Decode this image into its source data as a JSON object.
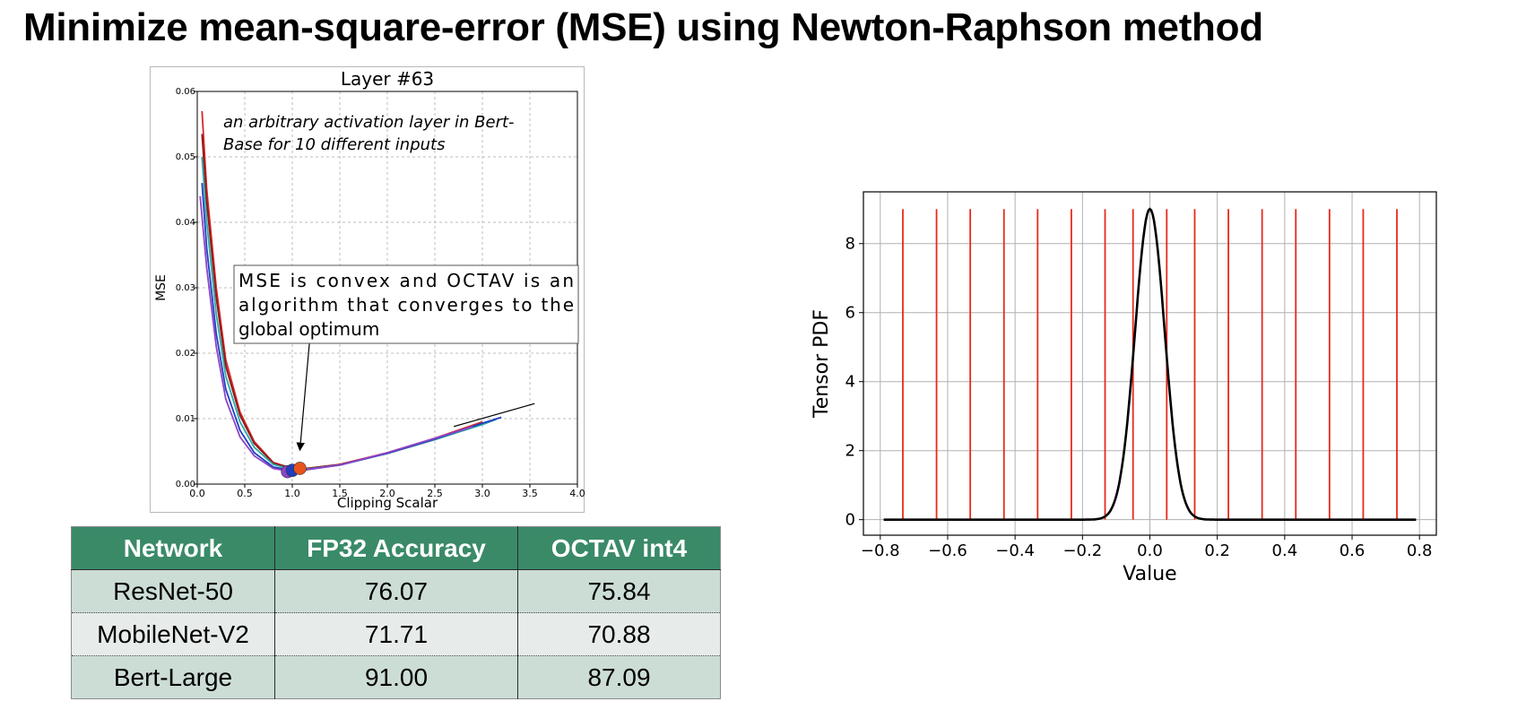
{
  "slide": {
    "title": "Minimize mean-square-error (MSE) using Newton-Raphson method"
  },
  "colors": {
    "table_header": "#3a8a68",
    "table_row_dark": "#ccddd6",
    "table_row_light": "#e7ecea",
    "quant_level": "#e8291c",
    "pdf_curve": "#000000"
  },
  "table": {
    "headers": [
      "Network",
      "FP32 Accuracy",
      "OCTAV int4"
    ],
    "rows": [
      [
        "ResNet-50",
        "76.07",
        "75.84"
      ],
      [
        "MobileNet-V2",
        "71.71",
        "70.88"
      ],
      [
        "Bert-Large",
        "91.00",
        "87.09"
      ]
    ]
  },
  "chart_data": [
    {
      "type": "line",
      "title": "Layer #63",
      "xlabel": "Clipping Scalar",
      "ylabel": "MSE",
      "xlim": [
        0.0,
        4.0
      ],
      "ylim": [
        0.0,
        0.06
      ],
      "xticks": [
        "0.0",
        "0.5",
        "1.0",
        "1.5",
        "2.0",
        "2.5",
        "3.0",
        "3.5",
        "4.0"
      ],
      "yticks": [
        "0.00",
        "0.01",
        "0.02",
        "0.03",
        "0.04",
        "0.05",
        "0.06"
      ],
      "grid": true,
      "annotation_top": "an arbitrary activation layer in Bert-Base for 10 different inputs",
      "annotation_top_lines": [
        "an arbitrary activation layer in Bert-",
        "Base for 10 different inputs"
      ],
      "annotation_box": "MSE is convex and OCTAV is an algorithm that converges to the global optimum",
      "annotation_box_lines": [
        "MSE is convex and OCTAV is an",
        "algorithm that  converges to the",
        "global optimum"
      ],
      "series": [
        {
          "color": "#d62728",
          "x": [
            0.05,
            0.1,
            0.2,
            0.3,
            0.45,
            0.6,
            0.8,
            1.0,
            1.1,
            1.5,
            2.0,
            2.5,
            3.0
          ],
          "y": [
            0.057,
            0.045,
            0.03,
            0.019,
            0.011,
            0.0065,
            0.0033,
            0.0024,
            0.0023,
            0.003,
            0.0048,
            0.007,
            0.0095
          ]
        },
        {
          "color": "#8b1a1a",
          "x": [
            0.05,
            0.1,
            0.2,
            0.3,
            0.45,
            0.6,
            0.8,
            1.0,
            1.1,
            1.5,
            2.0,
            2.5,
            3.0
          ],
          "y": [
            0.0535,
            0.043,
            0.0285,
            0.018,
            0.0105,
            0.0062,
            0.0032,
            0.0024,
            0.0023,
            0.003,
            0.0047,
            0.0068,
            0.0092
          ]
        },
        {
          "color": "#2ca8a8",
          "x": [
            0.05,
            0.1,
            0.2,
            0.3,
            0.45,
            0.6,
            0.8,
            1.0,
            1.1,
            1.5,
            2.0,
            2.5,
            3.0,
            3.15
          ],
          "y": [
            0.05,
            0.04,
            0.026,
            0.0165,
            0.0095,
            0.0056,
            0.003,
            0.0022,
            0.0022,
            0.0029,
            0.0047,
            0.0068,
            0.0091,
            0.0099
          ]
        },
        {
          "color": "#1f3fbf",
          "x": [
            0.05,
            0.1,
            0.2,
            0.3,
            0.45,
            0.6,
            0.8,
            1.0,
            1.1,
            1.5,
            2.0,
            2.5,
            3.0,
            3.2
          ],
          "y": [
            0.046,
            0.036,
            0.023,
            0.0145,
            0.0082,
            0.0048,
            0.0026,
            0.0021,
            0.0021,
            0.0029,
            0.0047,
            0.0069,
            0.0093,
            0.0102
          ]
        },
        {
          "color": "#8e44c8",
          "x": [
            0.03,
            0.1,
            0.2,
            0.3,
            0.45,
            0.6,
            0.8,
            0.95,
            1.1,
            1.5,
            2.0,
            2.5,
            2.9
          ],
          "y": [
            0.044,
            0.033,
            0.021,
            0.013,
            0.0072,
            0.0043,
            0.0024,
            0.002,
            0.0021,
            0.0029,
            0.0048,
            0.007,
            0.0088
          ]
        }
      ],
      "optima": [
        {
          "x": 0.95,
          "y": 0.0019,
          "color": "#8e44c8"
        },
        {
          "x": 1.0,
          "y": 0.0021,
          "color": "#1f3fbf"
        },
        {
          "x": 1.08,
          "y": 0.0024,
          "color": "#e8531c"
        }
      ],
      "arrow": {
        "from": [
          1.18,
          0.0215
        ],
        "to": [
          1.08,
          0.0052
        ]
      },
      "extra_line": {
        "x": [
          2.7,
          3.55
        ],
        "y": [
          0.0088,
          0.0123
        ]
      }
    },
    {
      "type": "line",
      "xlabel": "Value",
      "ylabel": "Tensor PDF",
      "xlim": [
        -0.85,
        0.85
      ],
      "ylim": [
        -0.45,
        9.5
      ],
      "xticks": [
        "−0.8",
        "−0.6",
        "−0.4",
        "−0.2",
        "0.0",
        "0.2",
        "0.4",
        "0.6",
        "0.8"
      ],
      "yticks": [
        "0",
        "2",
        "4",
        "6",
        "8"
      ],
      "grid": true,
      "pdf": {
        "mean": 0.0,
        "std": 0.044,
        "peak": 9.0,
        "x_min": -0.79,
        "x_max": 0.79
      },
      "quantization_levels": [
        -0.733,
        -0.633,
        -0.533,
        -0.433,
        -0.333,
        -0.233,
        -0.133,
        -0.05,
        0.05,
        0.133,
        0.233,
        0.333,
        0.433,
        0.533,
        0.633,
        0.733
      ],
      "quantization_level_height": 9.0
    }
  ]
}
